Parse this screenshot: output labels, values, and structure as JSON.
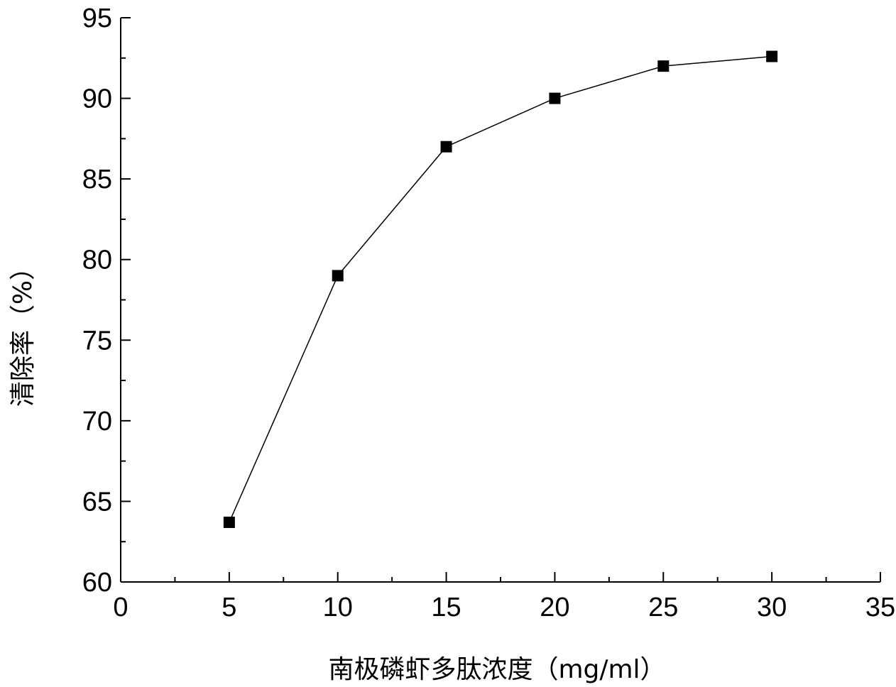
{
  "chart_data": {
    "type": "line",
    "xlabel": "南极磷虾多肽浓度（mg/ml）",
    "ylabel": "清除率（%）",
    "xlim": [
      0,
      35
    ],
    "ylim": [
      60,
      95
    ],
    "xticks": [
      0,
      5,
      10,
      15,
      20,
      25,
      30,
      35
    ],
    "yticks": [
      60,
      65,
      70,
      75,
      80,
      85,
      90,
      95
    ],
    "grid": false,
    "marker": "square",
    "series": [
      {
        "x": [
          5,
          10,
          15,
          20,
          25,
          30
        ],
        "y": [
          63.7,
          79,
          87,
          90,
          92,
          92.6
        ],
        "color": "#000000"
      }
    ]
  }
}
